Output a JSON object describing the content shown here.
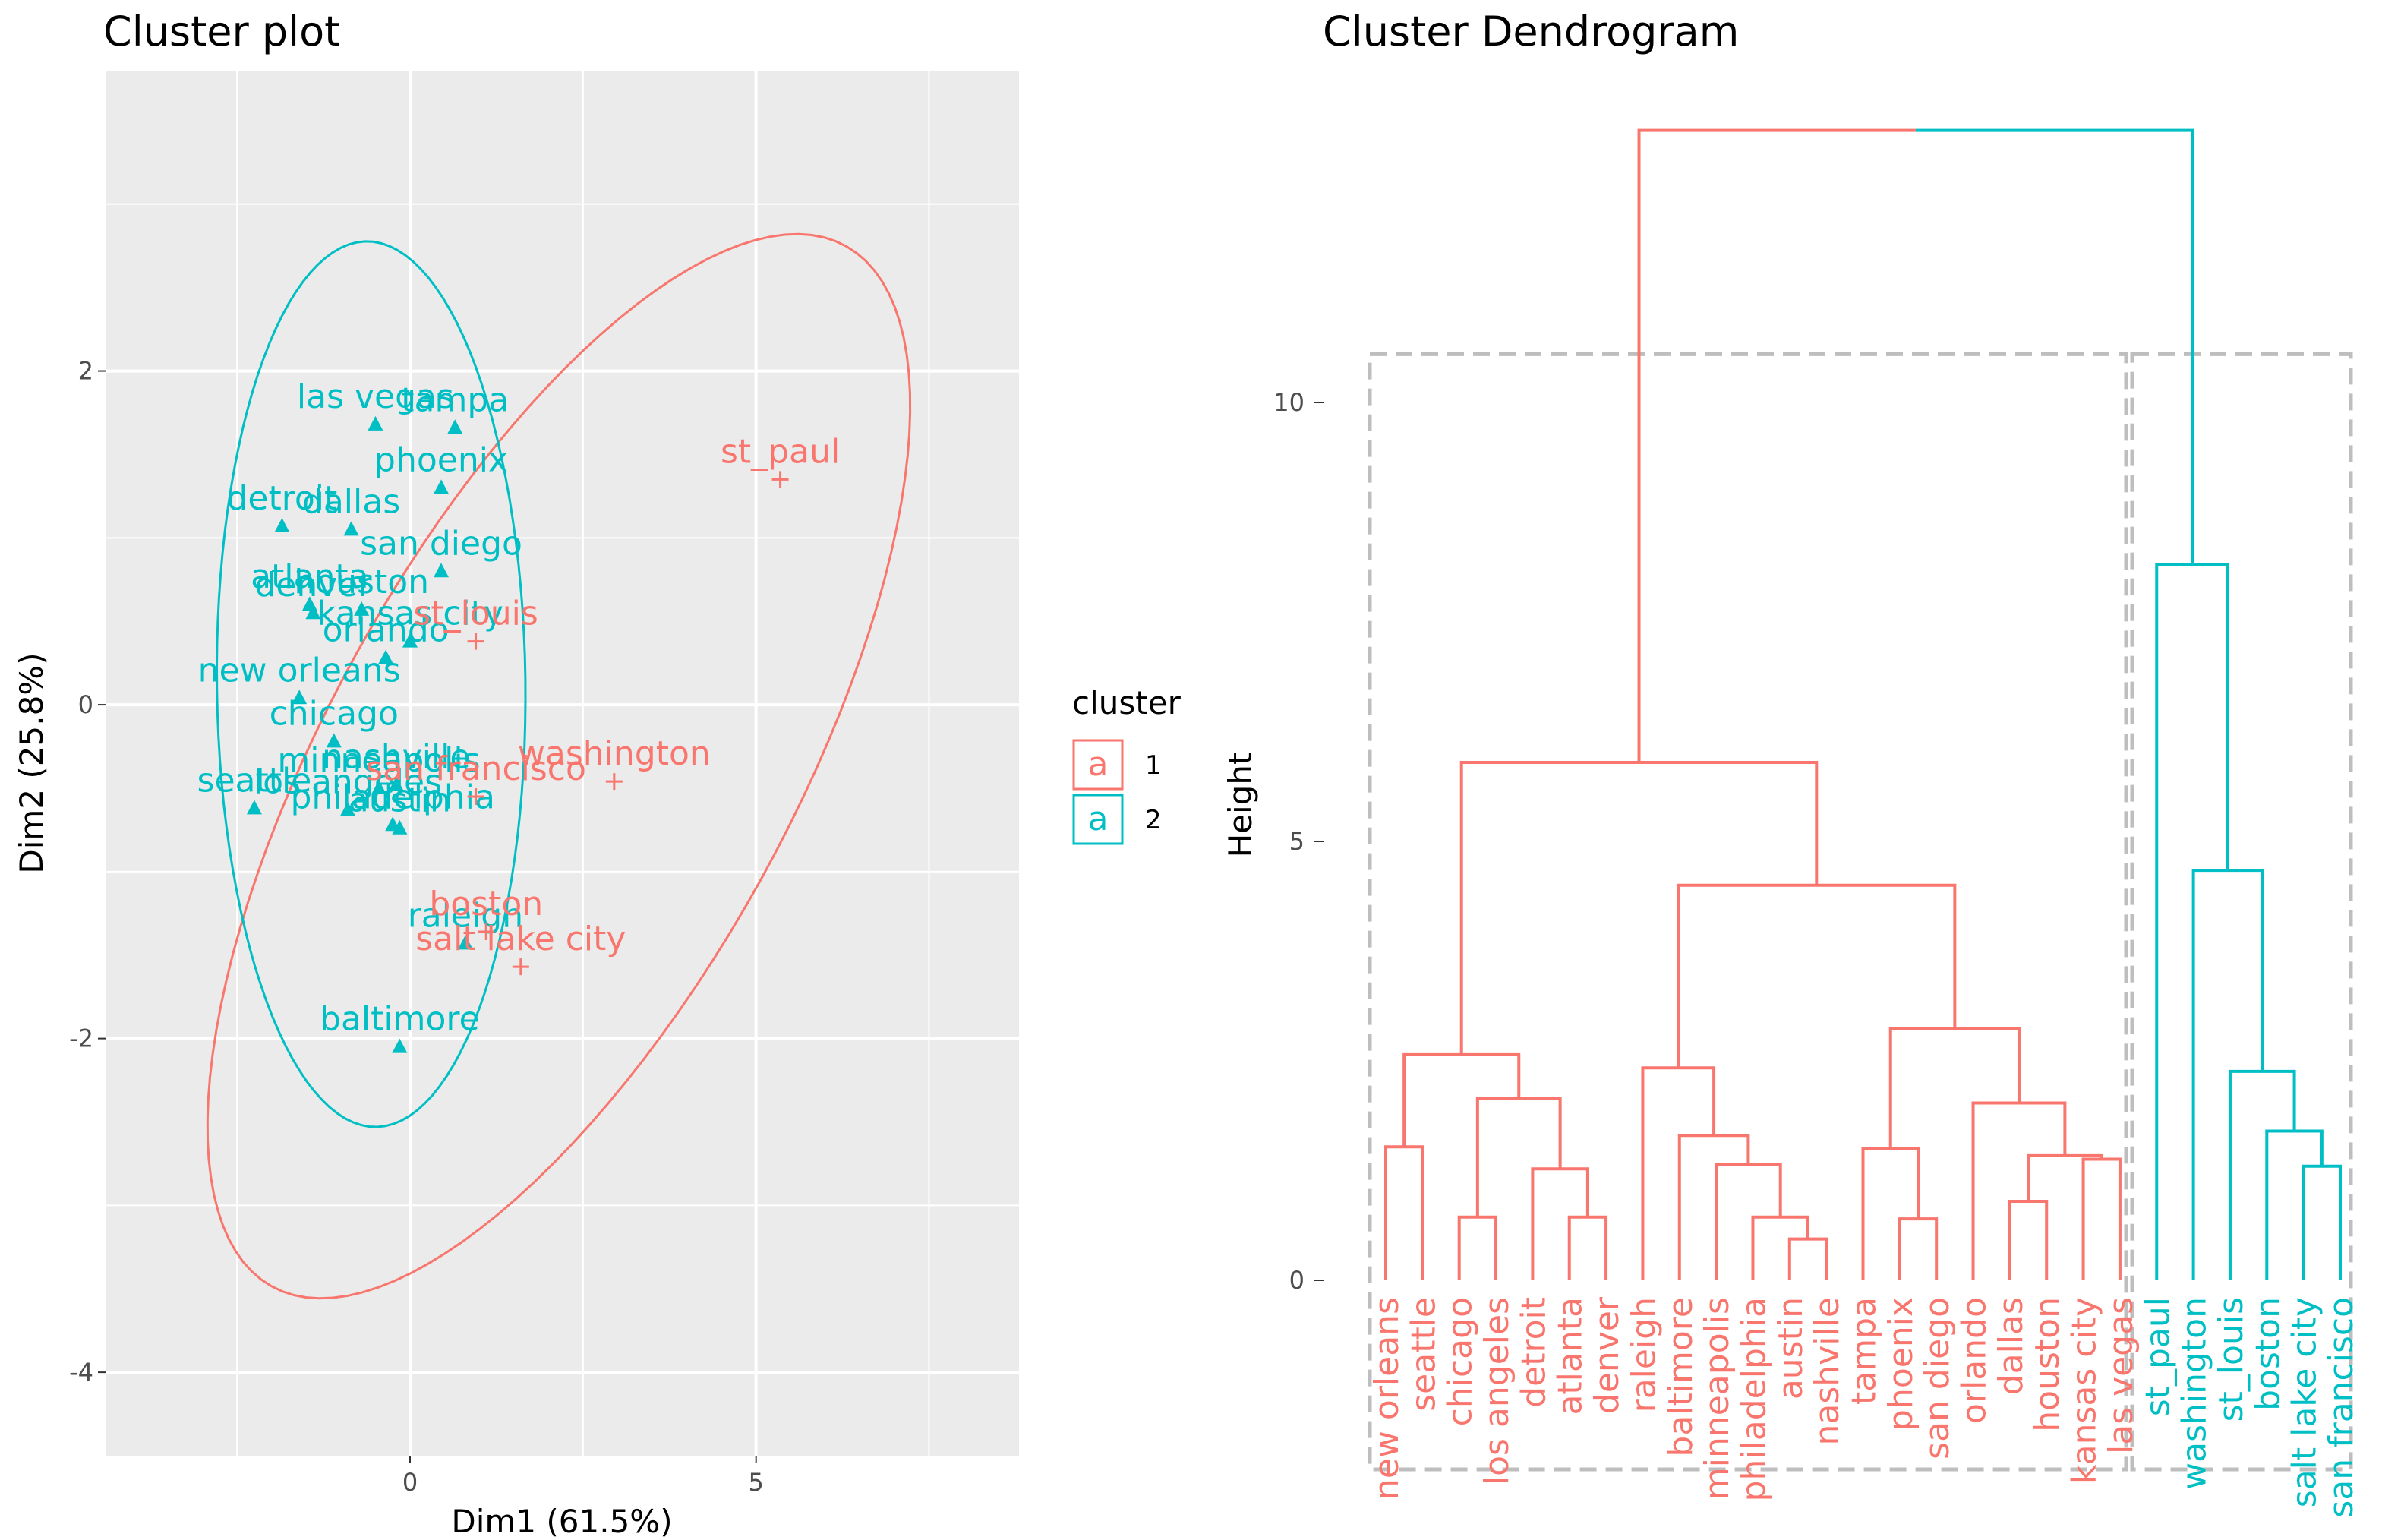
{
  "colors": {
    "cluster1": "#F8766D",
    "cluster2": "#00BFC4",
    "panel": "#EBEBEB",
    "grid": "#FFFFFF",
    "box": "#BEBEBE"
  },
  "chart_data": [
    {
      "type": "scatter",
      "title": "Cluster plot",
      "xlabel": "Dim1 (61.5%)",
      "ylabel": "Dim2 (25.8%)",
      "xlim": [
        -4.4,
        8.8
      ],
      "ylim": [
        -4.5,
        3.8
      ],
      "x_ticks": [
        0,
        5
      ],
      "y_ticks": [
        2,
        0,
        -2,
        -4
      ],
      "grid": true,
      "legend": {
        "title": "cluster",
        "position": "right",
        "entries": [
          "1",
          "2"
        ],
        "glyph": "a"
      },
      "points": [
        {
          "label": "las vegas",
          "x": -0.5,
          "y": 1.68,
          "cluster": 2
        },
        {
          "label": "tampa",
          "x": 0.65,
          "y": 1.66,
          "cluster": 2
        },
        {
          "label": "phoenix",
          "x": 0.45,
          "y": 1.3,
          "cluster": 2
        },
        {
          "label": "detroit",
          "x": -1.85,
          "y": 1.07,
          "cluster": 2
        },
        {
          "label": "dallas",
          "x": -0.85,
          "y": 1.05,
          "cluster": 2
        },
        {
          "label": "san diego",
          "x": 0.45,
          "y": 0.8,
          "cluster": 2
        },
        {
          "label": "atlanta",
          "x": -1.45,
          "y": 0.6,
          "cluster": 2
        },
        {
          "label": "denver",
          "x": -1.4,
          "y": 0.55,
          "cluster": 2
        },
        {
          "label": "houston",
          "x": -0.7,
          "y": 0.57,
          "cluster": 2
        },
        {
          "label": "kansas city",
          "x": 0,
          "y": 0.38,
          "cluster": 2
        },
        {
          "label": "orlando",
          "x": -0.35,
          "y": 0.28,
          "cluster": 2
        },
        {
          "label": "new orleans",
          "x": -1.6,
          "y": 0.04,
          "cluster": 2
        },
        {
          "label": "chicago",
          "x": -1.1,
          "y": -0.22,
          "cluster": 2
        },
        {
          "label": "minneapolis",
          "x": -0.45,
          "y": -0.5,
          "cluster": 2
        },
        {
          "label": "nashville",
          "x": -0.2,
          "y": -0.48,
          "cluster": 2
        },
        {
          "label": "seattle",
          "x": -2.25,
          "y": -0.62,
          "cluster": 2
        },
        {
          "label": "los angeles",
          "x": -0.9,
          "y": -0.63,
          "cluster": 2
        },
        {
          "label": "philadelphia",
          "x": -0.25,
          "y": -0.72,
          "cluster": 2
        },
        {
          "label": "austin",
          "x": -0.15,
          "y": -0.74,
          "cluster": 2
        },
        {
          "label": "baltimore",
          "x": -0.15,
          "y": -2.05,
          "cluster": 2
        },
        {
          "label": "raleigh",
          "x": 0.8,
          "y": -1.43,
          "cluster": 2
        },
        {
          "label": "st_paul",
          "x": 5.35,
          "y": 1.35,
          "cluster": 1
        },
        {
          "label": "st_louis",
          "x": 0.95,
          "y": 0.38,
          "cluster": 1
        },
        {
          "label": "washington",
          "x": 2.95,
          "y": -0.46,
          "cluster": 1
        },
        {
          "label": "san francisco",
          "x": 0.95,
          "y": -0.55,
          "cluster": 1
        },
        {
          "label": "boston",
          "x": 1.1,
          "y": -1.36,
          "cluster": 1
        },
        {
          "label": "salt lake city",
          "x": 1.6,
          "y": -1.57,
          "cluster": 1
        }
      ]
    },
    {
      "type": "dendrogram",
      "title": "Cluster Dendrogram",
      "xlabel": "",
      "ylabel": "Height",
      "ylim": [
        -2.2,
        13.3
      ],
      "y_ticks": [
        0,
        5,
        10
      ],
      "leaves": [
        {
          "label": "new orleans",
          "cluster": 1
        },
        {
          "label": "seattle",
          "cluster": 1
        },
        {
          "label": "chicago",
          "cluster": 1
        },
        {
          "label": "los angeles",
          "cluster": 1
        },
        {
          "label": "detroit",
          "cluster": 1
        },
        {
          "label": "atlanta",
          "cluster": 1
        },
        {
          "label": "denver",
          "cluster": 1
        },
        {
          "label": "raleigh",
          "cluster": 1
        },
        {
          "label": "baltimore",
          "cluster": 1
        },
        {
          "label": "minneapolis",
          "cluster": 1
        },
        {
          "label": "philadelphia",
          "cluster": 1
        },
        {
          "label": "austin",
          "cluster": 1
        },
        {
          "label": "nashville",
          "cluster": 1
        },
        {
          "label": "tampa",
          "cluster": 1
        },
        {
          "label": "phoenix",
          "cluster": 1
        },
        {
          "label": "san diego",
          "cluster": 1
        },
        {
          "label": "orlando",
          "cluster": 1
        },
        {
          "label": "dallas",
          "cluster": 1
        },
        {
          "label": "houston",
          "cluster": 1
        },
        {
          "label": "kansas city",
          "cluster": 1
        },
        {
          "label": "las vegas",
          "cluster": 1
        },
        {
          "label": "st_paul",
          "cluster": 2
        },
        {
          "label": "washington",
          "cluster": 2
        },
        {
          "label": "st_louis",
          "cluster": 2
        },
        {
          "label": "boston",
          "cluster": 2
        },
        {
          "label": "salt lake city",
          "cluster": 2
        },
        {
          "label": "san francisco",
          "cluster": 2
        }
      ],
      "merges": [
        {
          "a": "L0",
          "b": "L1",
          "h": 1.52,
          "id": "m1"
        },
        {
          "a": "L2",
          "b": "L3",
          "h": 0.72,
          "id": "m2"
        },
        {
          "a": "L5",
          "b": "L6",
          "h": 0.72,
          "id": "m3"
        },
        {
          "a": "L4",
          "b": "m3",
          "h": 1.27,
          "id": "m4"
        },
        {
          "a": "m2",
          "b": "m4",
          "h": 2.07,
          "id": "m5"
        },
        {
          "a": "m1",
          "b": "m5",
          "h": 2.57,
          "id": "m6"
        },
        {
          "a": "L11",
          "b": "L12",
          "h": 0.47,
          "id": "m7"
        },
        {
          "a": "L10",
          "b": "m7",
          "h": 0.72,
          "id": "m8"
        },
        {
          "a": "L9",
          "b": "m8",
          "h": 1.32,
          "id": "m9"
        },
        {
          "a": "L8",
          "b": "m9",
          "h": 1.65,
          "id": "m10"
        },
        {
          "a": "L7",
          "b": "m10",
          "h": 2.42,
          "id": "m11"
        },
        {
          "a": "L14",
          "b": "L15",
          "h": 0.7,
          "id": "m12"
        },
        {
          "a": "L13",
          "b": "m12",
          "h": 1.5,
          "id": "m13"
        },
        {
          "a": "L17",
          "b": "L18",
          "h": 0.9,
          "id": "m14"
        },
        {
          "a": "L19",
          "b": "L20",
          "h": 1.38,
          "id": "m15"
        },
        {
          "a": "m14",
          "b": "m15",
          "h": 1.42,
          "id": "m16"
        },
        {
          "a": "L16",
          "b": "m16",
          "h": 2.02,
          "id": "m17"
        },
        {
          "a": "m13",
          "b": "m17",
          "h": 2.87,
          "id": "m18"
        },
        {
          "a": "m11",
          "b": "m18",
          "h": 4.5,
          "id": "m19"
        },
        {
          "a": "m6",
          "b": "m19",
          "h": 5.9,
          "id": "m20"
        },
        {
          "a": "L25",
          "b": "L26",
          "h": 1.3,
          "id": "m21"
        },
        {
          "a": "L24",
          "b": "m21",
          "h": 1.7,
          "id": "m22"
        },
        {
          "a": "L23",
          "b": "m22",
          "h": 2.38,
          "id": "m23"
        },
        {
          "a": "L22",
          "b": "m23",
          "h": 4.67,
          "id": "m24"
        },
        {
          "a": "L21",
          "b": "m24",
          "h": 8.15,
          "id": "m25"
        },
        {
          "a": "m20",
          "b": "m25",
          "h": 13.1,
          "id": "m26"
        }
      ]
    }
  ]
}
